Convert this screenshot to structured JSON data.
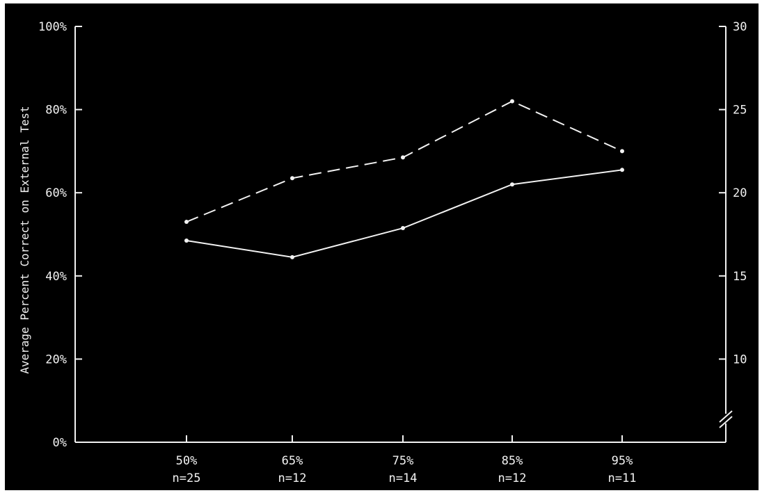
{
  "chart_data": {
    "type": "line",
    "ylabel": "Average Percent Correct on External Test",
    "categories": [
      "50%",
      "65%",
      "75%",
      "85%",
      "95%"
    ],
    "category_counts": [
      "n=25",
      "n=12",
      "n=14",
      "n=12",
      "n=11"
    ],
    "ylim": [
      0,
      100
    ],
    "yticks": [
      "0%",
      "20%",
      "40%",
      "60%",
      "80%",
      "100%"
    ],
    "y2lim": [
      5,
      30
    ],
    "y2ticks": [
      "10",
      "15",
      "20",
      "25",
      "30"
    ],
    "y2_axis_break": true,
    "grid": false,
    "series": [
      {
        "style": "solid",
        "axis": "left",
        "values": [
          48.5,
          44.5,
          51.5,
          62,
          65.5
        ]
      },
      {
        "style": "dashed",
        "axis": "left",
        "values": [
          53,
          63.5,
          68.5,
          82,
          70
        ]
      }
    ],
    "colors": {
      "background": "#000000",
      "foreground": "#f2f2f2"
    }
  }
}
